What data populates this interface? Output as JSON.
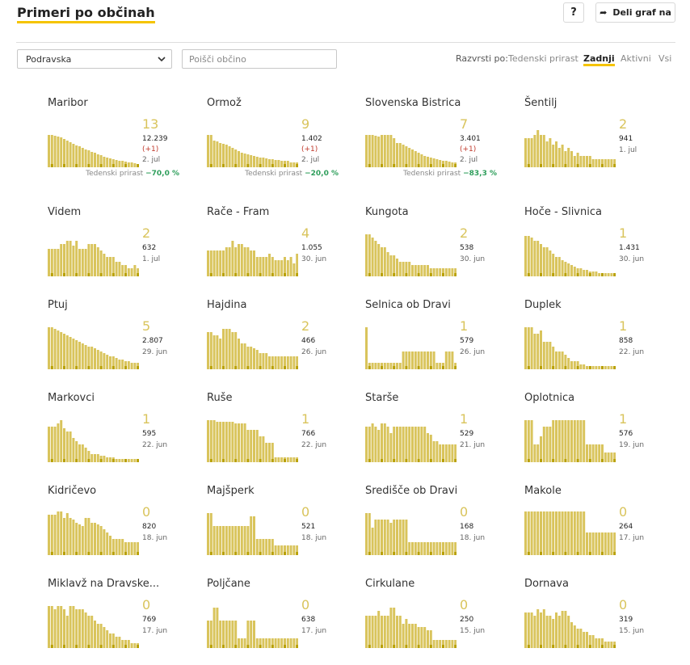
{
  "header": {
    "title": "Primeri po občinah",
    "help_label": "?",
    "share_label": "Deli graf na"
  },
  "filters": {
    "region": "Podravska",
    "search_placeholder": "Poišči občino"
  },
  "sort": {
    "label": "Razvrsti po:",
    "options": [
      "Tedenski prirast",
      "Zadnji",
      "Aktivni",
      "Vsi"
    ],
    "active": "Zadnji"
  },
  "colors": {
    "bar": "#d9c45c",
    "bar_accent": "#b8a000",
    "underline": "#f5c400",
    "increase": "#c0392b",
    "growth": "#2e9e5b"
  },
  "municipalities": [
    {
      "name": "Maribor",
      "value": "13",
      "total": "12.239",
      "increase": "(+1)",
      "date": "2. jul",
      "growth_label": "Tedenski prirast",
      "growth": "−70,0 %",
      "bars": [
        40,
        40,
        39,
        38,
        37,
        35,
        33,
        31,
        29,
        27,
        26,
        24,
        22,
        21,
        19,
        18,
        16,
        15,
        13,
        12,
        11,
        10,
        9,
        8,
        8,
        7,
        6,
        6,
        5,
        4
      ]
    },
    {
      "name": "Ormož",
      "value": "9",
      "total": "1.402",
      "increase": "(+1)",
      "date": "2. jul",
      "growth_label": "Tedenski prirast",
      "growth": "−20,0 %",
      "bars": [
        40,
        40,
        33,
        32,
        30,
        29,
        28,
        26,
        24,
        22,
        20,
        18,
        17,
        16,
        15,
        14,
        13,
        12,
        12,
        11,
        10,
        10,
        9,
        9,
        8,
        8,
        8,
        6,
        6,
        6
      ]
    },
    {
      "name": "Slovenska Bistrica",
      "value": "7",
      "total": "3.401",
      "increase": "(+1)",
      "date": "2. jul",
      "growth_label": "Tedenski prirast",
      "growth": "−83,3 %",
      "bars": [
        40,
        40,
        40,
        39,
        38,
        40,
        40,
        40,
        40,
        36,
        30,
        30,
        28,
        26,
        24,
        22,
        20,
        18,
        16,
        14,
        13,
        12,
        11,
        10,
        9,
        8,
        8,
        7,
        6,
        6
      ]
    },
    {
      "name": "Šentilj",
      "value": "2",
      "total": "941",
      "increase": "",
      "date": "1. jul",
      "growth_label": "",
      "growth": "",
      "bars": [
        36,
        36,
        36,
        40,
        46,
        40,
        40,
        32,
        36,
        28,
        32,
        24,
        28,
        20,
        24,
        20,
        14,
        18,
        14,
        14,
        14,
        14,
        10,
        10,
        10,
        10,
        10,
        10,
        10,
        10
      ]
    },
    {
      "name": "Videm",
      "value": "2",
      "total": "632",
      "increase": "",
      "date": "1. jul",
      "growth_label": "",
      "growth": "",
      "bars": [
        34,
        34,
        34,
        34,
        40,
        40,
        44,
        44,
        38,
        44,
        34,
        34,
        34,
        40,
        40,
        40,
        36,
        32,
        28,
        24,
        24,
        24,
        18,
        18,
        14,
        14,
        10,
        10,
        14,
        10
      ]
    },
    {
      "name": "Rače - Fram",
      "value": "4",
      "total": "1.055",
      "increase": "",
      "date": "30. jun",
      "growth_label": "",
      "growth": "",
      "bars": [
        32,
        32,
        32,
        32,
        32,
        32,
        36,
        36,
        44,
        36,
        40,
        40,
        36,
        36,
        32,
        32,
        24,
        24,
        24,
        24,
        28,
        24,
        20,
        20,
        20,
        24,
        20,
        24,
        16,
        28
      ]
    },
    {
      "name": "Kungota",
      "value": "2",
      "total": "538",
      "increase": "",
      "date": "30. jun",
      "growth_label": "",
      "growth": "",
      "bars": [
        52,
        52,
        48,
        44,
        40,
        36,
        36,
        30,
        26,
        26,
        22,
        18,
        18,
        18,
        18,
        14,
        14,
        14,
        14,
        14,
        14,
        10,
        10,
        10,
        10,
        10,
        10,
        10,
        10,
        10
      ]
    },
    {
      "name": "Hoče - Slivnica",
      "value": "1",
      "total": "1.431",
      "increase": "",
      "date": "30. jun",
      "growth_label": "",
      "growth": "",
      "bars": [
        50,
        50,
        48,
        44,
        44,
        40,
        36,
        36,
        32,
        28,
        24,
        24,
        20,
        18,
        16,
        14,
        12,
        10,
        10,
        8,
        8,
        6,
        6,
        6,
        4,
        4,
        4,
        4,
        4,
        4
      ]
    },
    {
      "name": "Ptuj",
      "value": "5",
      "total": "2.807",
      "increase": "",
      "date": "29. jun",
      "growth_label": "",
      "growth": "",
      "bars": [
        52,
        52,
        50,
        48,
        46,
        44,
        42,
        40,
        38,
        36,
        34,
        32,
        30,
        28,
        28,
        26,
        24,
        22,
        20,
        18,
        16,
        16,
        14,
        12,
        12,
        10,
        10,
        8,
        8,
        8
      ]
    },
    {
      "name": "Hajdina",
      "value": "2",
      "total": "466",
      "increase": "",
      "date": "26. jun",
      "growth_label": "",
      "growth": "",
      "bars": [
        46,
        46,
        42,
        42,
        38,
        50,
        50,
        50,
        46,
        46,
        38,
        32,
        32,
        28,
        28,
        26,
        24,
        20,
        20,
        20,
        16,
        16,
        16,
        16,
        16,
        16,
        16,
        16,
        16,
        16
      ]
    },
    {
      "name": "Selnica ob Dravi",
      "value": "1",
      "total": "579",
      "increase": "",
      "date": "26. jun",
      "growth_label": "",
      "growth": "",
      "bars": [
        52,
        8,
        8,
        8,
        8,
        8,
        8,
        8,
        8,
        8,
        8,
        8,
        22,
        22,
        22,
        22,
        22,
        22,
        22,
        22,
        22,
        22,
        22,
        8,
        8,
        8,
        22,
        22,
        22,
        8
      ]
    },
    {
      "name": "Duplek",
      "value": "1",
      "total": "858",
      "increase": "",
      "date": "22. jun",
      "growth_label": "",
      "growth": "",
      "bars": [
        52,
        52,
        52,
        44,
        44,
        48,
        34,
        34,
        34,
        28,
        22,
        22,
        22,
        18,
        14,
        10,
        10,
        10,
        6,
        6,
        4,
        4,
        4,
        4,
        4,
        4,
        4,
        4,
        4,
        4
      ]
    },
    {
      "name": "Markovci",
      "value": "1",
      "total": "595",
      "increase": "",
      "date": "22. jun",
      "growth_label": "",
      "growth": "",
      "bars": [
        44,
        44,
        44,
        48,
        52,
        42,
        38,
        38,
        30,
        26,
        22,
        22,
        18,
        14,
        10,
        10,
        10,
        8,
        8,
        6,
        6,
        6,
        4,
        4,
        4,
        4,
        4,
        4,
        4,
        4
      ]
    },
    {
      "name": "Ruše",
      "value": "1",
      "total": "766",
      "increase": "",
      "date": "22. jun",
      "growth_label": "",
      "growth": "",
      "bars": [
        52,
        52,
        52,
        50,
        50,
        50,
        50,
        50,
        50,
        48,
        48,
        48,
        48,
        40,
        40,
        40,
        40,
        32,
        32,
        24,
        24,
        24,
        6,
        6,
        6,
        6,
        6,
        6,
        6,
        6
      ]
    },
    {
      "name": "Starše",
      "value": "1",
      "total": "529",
      "increase": "",
      "date": "21. jun",
      "growth_label": "",
      "growth": "",
      "bars": [
        44,
        44,
        48,
        44,
        40,
        48,
        48,
        44,
        36,
        44,
        44,
        44,
        44,
        44,
        44,
        44,
        44,
        44,
        44,
        44,
        36,
        34,
        26,
        26,
        22,
        22,
        22,
        22,
        22,
        22
      ]
    },
    {
      "name": "Oplotnica",
      "value": "1",
      "total": "576",
      "increase": "",
      "date": "19. jun",
      "growth_label": "",
      "growth": "",
      "bars": [
        52,
        52,
        52,
        22,
        22,
        32,
        44,
        44,
        44,
        52,
        52,
        52,
        52,
        52,
        52,
        52,
        52,
        52,
        52,
        52,
        22,
        22,
        22,
        22,
        22,
        22,
        12,
        12,
        12,
        12
      ]
    },
    {
      "name": "Kidričevo",
      "value": "0",
      "total": "820",
      "increase": "",
      "date": "18. jun",
      "growth_label": "",
      "growth": "",
      "bars": [
        50,
        50,
        50,
        54,
        54,
        46,
        52,
        46,
        44,
        40,
        38,
        36,
        46,
        46,
        40,
        40,
        38,
        36,
        32,
        28,
        24,
        20,
        20,
        20,
        20,
        16,
        16,
        16,
        16,
        16
      ]
    },
    {
      "name": "Majšperk",
      "value": "0",
      "total": "521",
      "increase": "",
      "date": "18. jun",
      "growth_label": "",
      "growth": "",
      "bars": [
        52,
        52,
        36,
        36,
        36,
        36,
        36,
        36,
        36,
        36,
        36,
        36,
        36,
        36,
        48,
        48,
        20,
        20,
        20,
        20,
        20,
        20,
        12,
        12,
        12,
        12,
        12,
        12,
        12,
        12
      ]
    },
    {
      "name": "Središče ob Dravi",
      "value": "0",
      "total": "168",
      "increase": "",
      "date": "18. jun",
      "growth_label": "",
      "growth": "",
      "bars": [
        52,
        52,
        34,
        44,
        44,
        44,
        44,
        44,
        40,
        44,
        44,
        44,
        44,
        44,
        16,
        16,
        16,
        16,
        16,
        16,
        16,
        16,
        16,
        16,
        16,
        16,
        16,
        16,
        16,
        16
      ]
    },
    {
      "name": "Makole",
      "value": "0",
      "total": "264",
      "increase": "",
      "date": "17. jun",
      "growth_label": "",
      "growth": "",
      "bars": [
        54,
        54,
        54,
        54,
        54,
        54,
        54,
        54,
        54,
        54,
        54,
        54,
        54,
        54,
        54,
        54,
        54,
        54,
        54,
        54,
        28,
        28,
        28,
        28,
        28,
        28,
        28,
        28,
        28,
        28
      ]
    },
    {
      "name": "Miklavž na Dravske...",
      "value": "0",
      "total": "769",
      "increase": "",
      "date": "17. jun",
      "growth_label": "",
      "growth": "",
      "bars": [
        52,
        52,
        48,
        52,
        52,
        48,
        40,
        52,
        52,
        48,
        48,
        48,
        44,
        40,
        40,
        34,
        30,
        30,
        26,
        22,
        18,
        18,
        14,
        14,
        10,
        10,
        10,
        6,
        6,
        6
      ]
    },
    {
      "name": "Poljčane",
      "value": "0",
      "total": "638",
      "increase": "",
      "date": "17. jun",
      "growth_label": "",
      "growth": "",
      "bars": [
        34,
        34,
        50,
        50,
        34,
        34,
        34,
        34,
        34,
        34,
        12,
        12,
        12,
        34,
        34,
        34,
        12,
        12,
        12,
        12,
        12,
        12,
        12,
        12,
        12,
        12,
        12,
        12,
        12,
        12
      ]
    },
    {
      "name": "Cirkulane",
      "value": "0",
      "total": "250",
      "increase": "",
      "date": "15. jun",
      "growth_label": "",
      "growth": "",
      "bars": [
        40,
        40,
        40,
        40,
        46,
        40,
        40,
        40,
        50,
        50,
        40,
        40,
        30,
        36,
        30,
        30,
        30,
        26,
        26,
        26,
        22,
        22,
        10,
        10,
        10,
        10,
        10,
        10,
        10,
        10
      ]
    },
    {
      "name": "Dornava",
      "value": "0",
      "total": "319",
      "increase": "",
      "date": "15. jun",
      "growth_label": "",
      "growth": "",
      "bars": [
        44,
        44,
        44,
        40,
        48,
        44,
        48,
        40,
        40,
        36,
        44,
        40,
        46,
        46,
        40,
        32,
        28,
        24,
        24,
        20,
        20,
        16,
        16,
        12,
        12,
        12,
        8,
        8,
        8,
        8
      ]
    }
  ]
}
